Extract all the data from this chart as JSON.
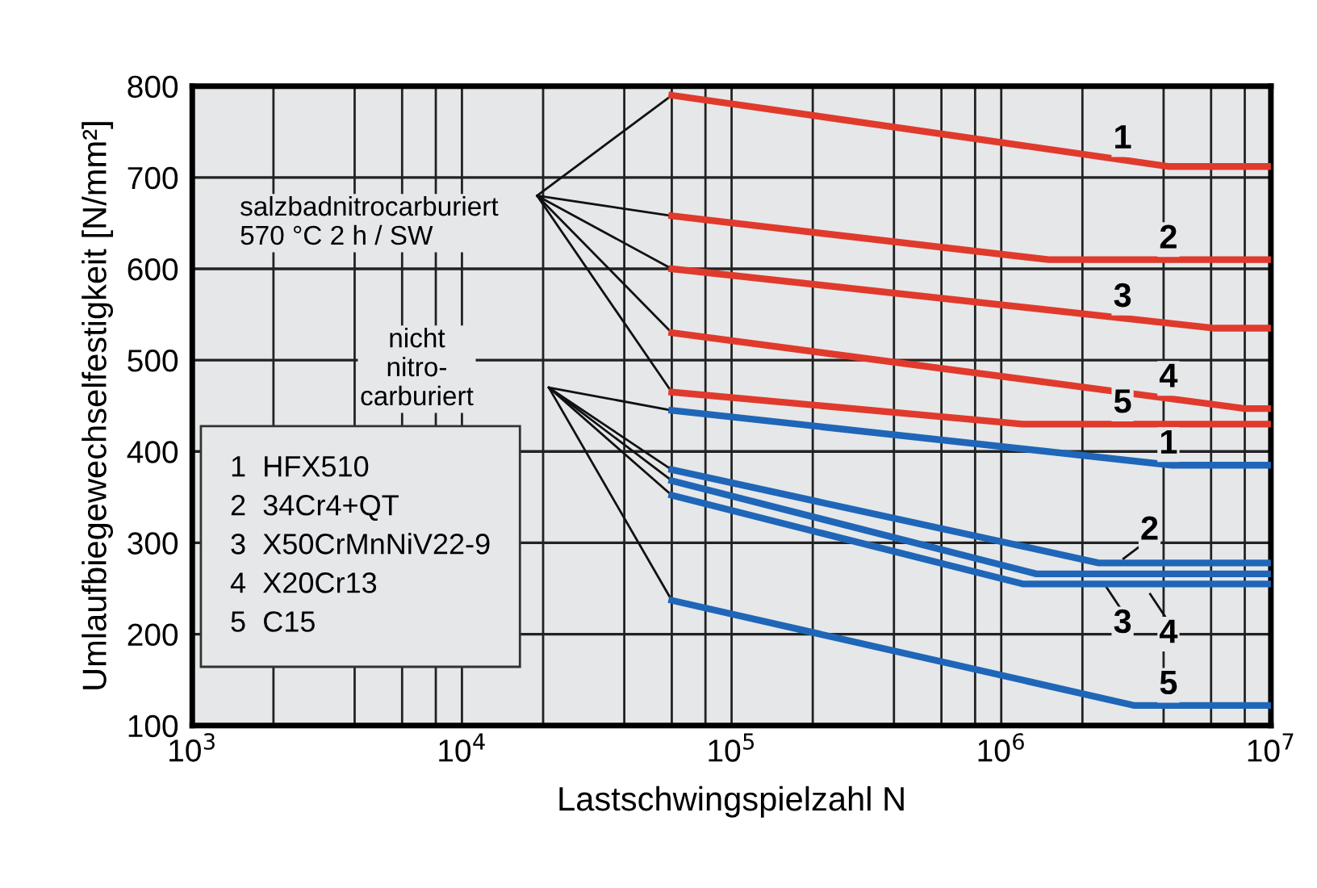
{
  "chart_data": {
    "type": "line",
    "xlabel": "Lastschwingspielzahl N",
    "ylabel": "Umlaufbiegewechselfestigkeit [N/mm²]",
    "log": "x",
    "grid": true,
    "legend": "right",
    "marker": "none",
    "line_style": "solid",
    "xlim": [
      1000,
      10000000
    ],
    "ylim": [
      100,
      800
    ],
    "xticks": [
      {
        "value": 1000,
        "label": "10$^{3}$"
      },
      {
        "value": 10000,
        "label": "10$^{4}$"
      },
      {
        "value": 100000,
        "label": "10$^{5}$"
      },
      {
        "value": 1000000,
        "label": "10$^{6}$"
      },
      {
        "value": 10000000,
        "label": "10$^{7}$"
      }
    ],
    "yticks": [
      100,
      200,
      300,
      400,
      500,
      600,
      700,
      800
    ],
    "series": [
      {
        "name": "1",
        "color": "#e03a2c",
        "x": [
          60000,
          4200000,
          10000000
        ],
        "values": [
          790,
          712,
          712
        ]
      },
      {
        "name": "2",
        "color": "#e03a2c",
        "x": [
          60000,
          1500000,
          10000000
        ],
        "values": [
          658,
          610,
          610
        ]
      },
      {
        "name": "3",
        "color": "#e03a2c",
        "x": [
          60000,
          6200000,
          10000000
        ],
        "values": [
          600,
          535,
          535
        ]
      },
      {
        "name": "4",
        "color": "#e03a2c",
        "x": [
          60000,
          8000000,
          10000000
        ],
        "values": [
          530,
          447,
          447
        ]
      },
      {
        "name": "5",
        "color": "#e03a2c",
        "x": [
          60000,
          1200000,
          10000000
        ],
        "values": [
          465,
          430,
          430
        ]
      },
      {
        "name": "1",
        "color": "#1f66b8",
        "x": [
          60000,
          4300000,
          10000000
        ],
        "values": [
          445,
          385,
          385
        ]
      },
      {
        "name": "2",
        "color": "#1f66b8",
        "x": [
          60000,
          2300000,
          10000000
        ],
        "values": [
          380,
          278,
          278
        ]
      },
      {
        "name": "3",
        "color": "#1f66b8",
        "x": [
          60000,
          1350000,
          10000000
        ],
        "values": [
          368,
          266,
          266
        ]
      },
      {
        "name": "4",
        "color": "#1f66b8",
        "x": [
          60000,
          1200000,
          10000000
        ],
        "values": [
          352,
          255,
          255
        ]
      },
      {
        "name": "5",
        "color": "#1f66b8",
        "x": [
          60000,
          3100000,
          10000000
        ],
        "values": [
          237,
          122,
          122
        ]
      }
    ],
    "annotations": [
      "salzbadnitrocarburiert\n570 °C 2 h / SW",
      "nicht\nnitro-\ncarburiert",
      "1  HFX510\n2  34Cr4+QT\n3  X50CrMnNiV22-9\n4  X20Cr13\n5  C15"
    ]
  }
}
